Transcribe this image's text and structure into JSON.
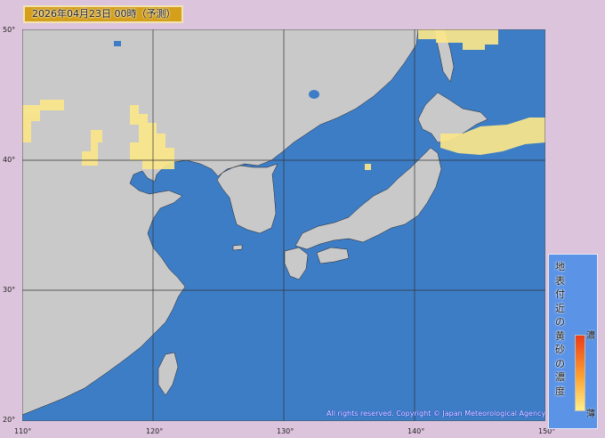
{
  "title": "2026年04月23日 00時（予測）",
  "map": {
    "colors": {
      "sea": "#3d7dc6",
      "land": "#c9c9c9",
      "dust_light": "#fbe68a",
      "dust_mid": "#f6d36a",
      "grid": "#333333",
      "lake": "#3d7dc6"
    },
    "lat_labels": [
      "50°",
      "40°",
      "30°",
      "20°"
    ],
    "lon_labels": [
      "110°",
      "120°",
      "130°",
      "140°",
      "150°"
    ]
  },
  "legend": {
    "title": "地表付近の黄砂の濃度",
    "high_label": "濃",
    "low_label": "薄",
    "gradient": [
      "#ec3d18",
      "#fda230",
      "#fff08a"
    ]
  },
  "copyright": "All rights reserved. Copyright © Japan Meteorological Agency"
}
